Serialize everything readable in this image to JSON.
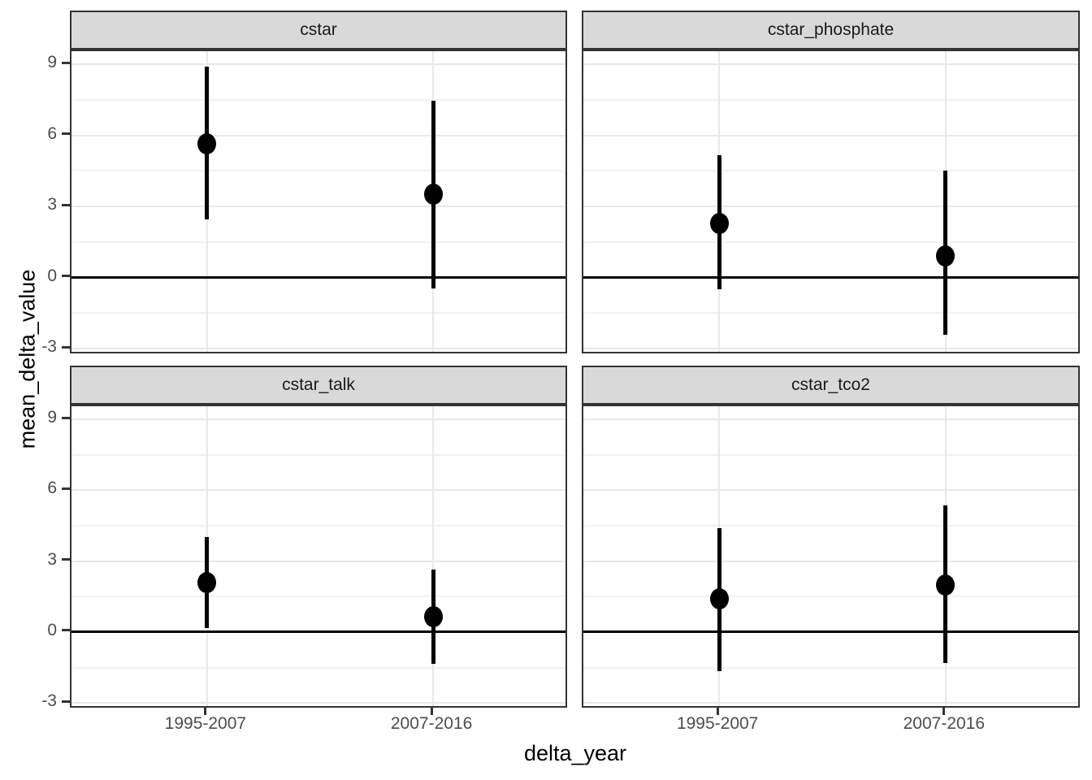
{
  "chart_data": {
    "type": "scatter",
    "subtype": "pointrange_facet_grid",
    "title": "",
    "xlabel": "delta_year",
    "ylabel": "mean_delta_value",
    "x_categories": [
      "1995-2007",
      "2007-2016"
    ],
    "yticks": [
      -3,
      0,
      3,
      6,
      9
    ],
    "yminor": [
      -1.5,
      1.5,
      4.5,
      7.5
    ],
    "ylim": [
      -3.27,
      9.55
    ],
    "hline": 0,
    "grid": "on",
    "legend": "none",
    "facets": [
      {
        "label": "cstar",
        "points": [
          {
            "x": "1995-2007",
            "y": 5.65,
            "ymin": 2.45,
            "ymax": 8.9
          },
          {
            "x": "2007-2016",
            "y": 3.5,
            "ymin": -0.45,
            "ymax": 7.45
          }
        ]
      },
      {
        "label": "cstar_phosphate",
        "points": [
          {
            "x": "1995-2007",
            "y": 2.3,
            "ymin": -0.5,
            "ymax": 5.15
          },
          {
            "x": "2007-2016",
            "y": 0.9,
            "ymin": -2.4,
            "ymax": 4.5
          }
        ]
      },
      {
        "label": "cstar_talk",
        "points": [
          {
            "x": "1995-2007",
            "y": 2.1,
            "ymin": 0.15,
            "ymax": 4.0
          },
          {
            "x": "2007-2016",
            "y": 0.65,
            "ymin": -1.35,
            "ymax": 2.65
          }
        ]
      },
      {
        "label": "cstar_tco2",
        "points": [
          {
            "x": "1995-2007",
            "y": 1.4,
            "ymin": -1.65,
            "ymax": 4.4
          },
          {
            "x": "2007-2016",
            "y": 2.0,
            "ymin": -1.3,
            "ymax": 5.35
          }
        ]
      }
    ],
    "colors": {
      "point": "#000000",
      "range_line": "#000000",
      "zero_line": "#000000",
      "strip_fill": "#d9d9d9",
      "panel_border": "#333333",
      "grid_major": "#e8e8e8",
      "grid_minor": "#f2f2f2",
      "axis_text": "#4d4d4d",
      "axis_title": "#000000",
      "background": "#ffffff"
    }
  }
}
